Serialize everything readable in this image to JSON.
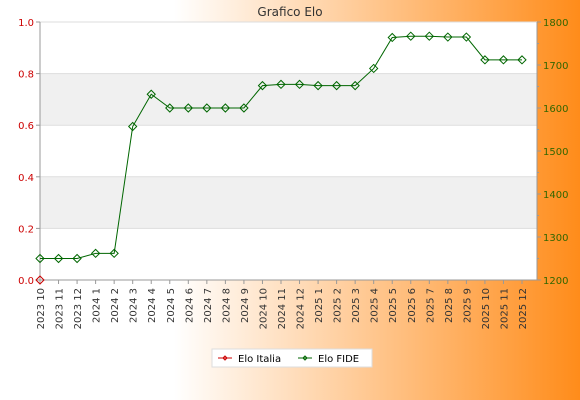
{
  "chart_data": {
    "type": "line",
    "title": "Grafico Elo",
    "categories": [
      "2023 10",
      "2023 11",
      "2023 12",
      "2024 1",
      "2024 2",
      "2024 3",
      "2024 4",
      "2024 5",
      "2024 6",
      "2024 7",
      "2024 8",
      "2024 9",
      "2024 10",
      "2024 11",
      "2024 12",
      "2025 1",
      "2025 2",
      "2025 3",
      "2025 4",
      "2025 5",
      "2025 6",
      "2025 7",
      "2025 8",
      "2025 9",
      "2025 10",
      "2025 11",
      "2025 12"
    ],
    "left_axis": {
      "ylim": [
        0,
        1.0
      ],
      "ticks": [
        "0.0",
        "0.2",
        "0.4",
        "0.6",
        "0.8",
        "1.0"
      ],
      "color": "#cc0000"
    },
    "right_axis": {
      "ylim": [
        1200,
        1800
      ],
      "ticks": [
        "1200",
        "1300",
        "1400",
        "1500",
        "1600",
        "1700",
        "1800"
      ],
      "color": "#336600"
    },
    "series": [
      {
        "name": "Elo Italia",
        "axis": "left",
        "color": "#cc0000",
        "values": [
          0,
          null,
          null,
          null,
          null,
          null,
          null,
          null,
          null,
          null,
          null,
          null,
          null,
          null,
          null,
          null,
          null,
          null,
          null,
          null,
          null,
          null,
          null,
          null,
          null,
          null,
          null
        ]
      },
      {
        "name": "Elo FIDE",
        "axis": "right",
        "color": "#006600",
        "values": [
          1250,
          1250,
          1250,
          1262,
          1262,
          1557,
          1632,
          1600,
          1600,
          1600,
          1600,
          1600,
          1652,
          1655,
          1655,
          1652,
          1652,
          1652,
          1692,
          1764,
          1767,
          1767,
          1765,
          1765,
          1712,
          1712,
          1712
        ]
      }
    ],
    "grid": "horizontal bands",
    "legend_position": "bottom-center",
    "background_gradient": [
      "#ffffff",
      "#ff8c1a"
    ]
  }
}
